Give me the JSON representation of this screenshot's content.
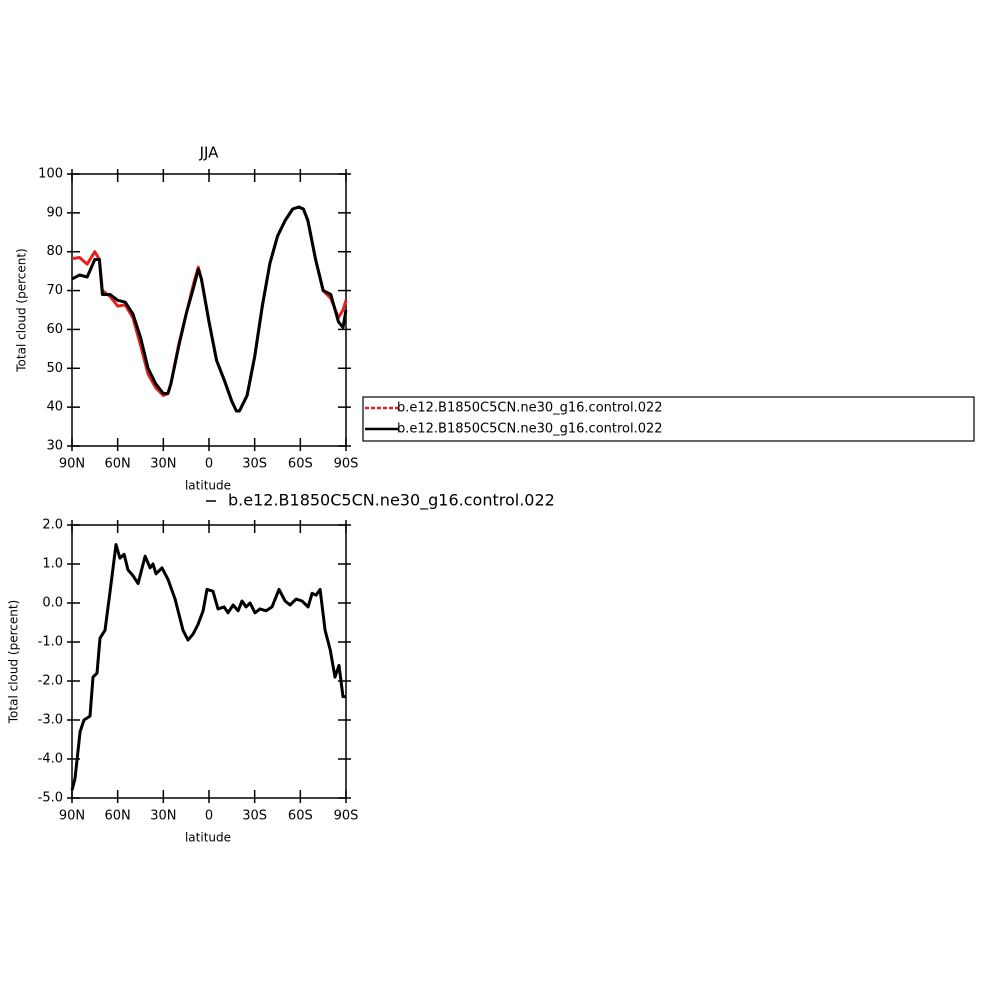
{
  "chart_data": [
    {
      "type": "line",
      "title": "JJA",
      "xlabel": "latitude",
      "ylabel": "Total cloud (percent)",
      "x": [
        90,
        85,
        80,
        75,
        72,
        70,
        65,
        60,
        55,
        50,
        45,
        40,
        35,
        30,
        27,
        25,
        20,
        15,
        10,
        7,
        5,
        0,
        -5,
        -10,
        -15,
        -18,
        -20,
        -25,
        -30,
        -35,
        -40,
        -45,
        -50,
        -55,
        -59,
        -62,
        -65,
        -70,
        -75,
        -80,
        -85,
        -88,
        -90
      ],
      "series": [
        {
          "name": "b.e12.B1850C5CN.ne30_g16.control.022",
          "color": "#e8201c",
          "values": [
            78.2,
            78.5,
            76.8,
            80,
            78,
            70,
            68.5,
            66,
            66.3,
            63,
            56,
            48.5,
            45,
            43,
            43.5,
            46,
            56,
            64,
            72,
            76,
            73,
            62,
            52,
            47,
            41.5,
            39,
            39,
            43,
            53,
            66,
            77,
            84,
            88,
            91,
            91.5,
            91,
            88,
            78,
            70,
            68,
            63,
            65,
            67.5
          ]
        },
        {
          "name": "b.e12.B1850C5CN.ne30_g16.control.022",
          "color": "#000000",
          "values": [
            73,
            74,
            73.5,
            78,
            78,
            69,
            69,
            67.5,
            67,
            64,
            58,
            50,
            46,
            43.5,
            43.5,
            46,
            55.5,
            64,
            71,
            75.5,
            73,
            62,
            52,
            47,
            41.5,
            39,
            39,
            43,
            53,
            66,
            77,
            84,
            88,
            91,
            91.5,
            91,
            88,
            78,
            70,
            69,
            62,
            60.5,
            65
          ]
        }
      ],
      "xlim": [
        90,
        -90
      ],
      "ylim": [
        30,
        100
      ],
      "xticks": [
        {
          "value": 90,
          "label": "90N"
        },
        {
          "value": 60,
          "label": "60N"
        },
        {
          "value": 30,
          "label": "30N"
        },
        0,
        {
          "value": -30,
          "label": "30S"
        },
        {
          "value": -60,
          "label": "60S"
        },
        {
          "value": -90,
          "label": "90S"
        }
      ],
      "yticks": [
        30,
        40,
        50,
        60,
        70,
        80,
        90,
        100
      ],
      "legend": "right"
    },
    {
      "type": "line",
      "xlabel": "latitude",
      "ylabel": "Total cloud (percent)",
      "x": [
        90,
        88,
        84.7,
        82.1,
        78.2,
        76.2,
        73.6,
        71.6,
        68.3,
        65,
        61.1,
        58.5,
        55.8,
        53.2,
        49.9,
        46.6,
        42,
        38.7,
        36.8,
        34.8,
        30.9,
        26.9,
        22.3,
        17.1,
        13.8,
        10.5,
        7.2,
        3.9,
        1.3,
        -2.6,
        -5.9,
        -9.9,
        -12.5,
        -15.8,
        -19.1,
        -21.7,
        -24.3,
        -27,
        -30.2,
        -33.5,
        -37.5,
        -41.4,
        -46,
        -50,
        -53.2,
        -57.2,
        -61.1,
        -65.1,
        -67.7,
        -70.3,
        -73,
        -76.3,
        -79.6,
        -82.8,
        -85.4,
        -88,
        -90
      ],
      "series": [
        {
          "name": "b.e12.B1850C5CN.ne30_g16.control.022",
          "color": "#000000",
          "values": [
            -4.8,
            -4.5,
            -3.3,
            -3.0,
            -2.9,
            -1.9,
            -1.8,
            -0.9,
            -0.7,
            0.3,
            1.5,
            1.15,
            1.25,
            0.85,
            0.7,
            0.5,
            1.2,
            0.9,
            1.0,
            0.75,
            0.9,
            0.6,
            0.1,
            -0.7,
            -0.95,
            -0.8,
            -0.55,
            -0.2,
            0.35,
            0.3,
            -0.15,
            -0.1,
            -0.25,
            -0.05,
            -0.2,
            0.05,
            -0.1,
            0.0,
            -0.25,
            -0.15,
            -0.2,
            -0.1,
            0.35,
            0.05,
            -0.05,
            0.1,
            0.05,
            -0.1,
            0.25,
            0.2,
            0.35,
            -0.7,
            -1.2,
            -1.9,
            -1.6,
            -2.4,
            -2.4
          ]
        }
      ],
      "xlim": [
        90,
        -90
      ],
      "ylim": [
        -5,
        2
      ],
      "xticks": [
        {
          "value": 90,
          "label": "90N"
        },
        {
          "value": 60,
          "label": "60N"
        },
        {
          "value": 30,
          "label": "30N"
        },
        0,
        {
          "value": -30,
          "label": "30S"
        },
        {
          "value": -60,
          "label": "60S"
        },
        {
          "value": -90,
          "label": "90S"
        }
      ],
      "yticks": [
        {
          "value": -5,
          "label": "-5.0"
        },
        {
          "value": -4,
          "label": "-4.0"
        },
        {
          "value": -3,
          "label": "-3.0"
        },
        {
          "value": -2,
          "label": "-2.0"
        },
        {
          "value": -1,
          "label": "-1.0"
        },
        {
          "value": 0,
          "label": "0.0"
        },
        {
          "value": 1,
          "label": "1.0"
        },
        {
          "value": 2,
          "label": "2.0"
        }
      ],
      "legend": "top"
    }
  ]
}
